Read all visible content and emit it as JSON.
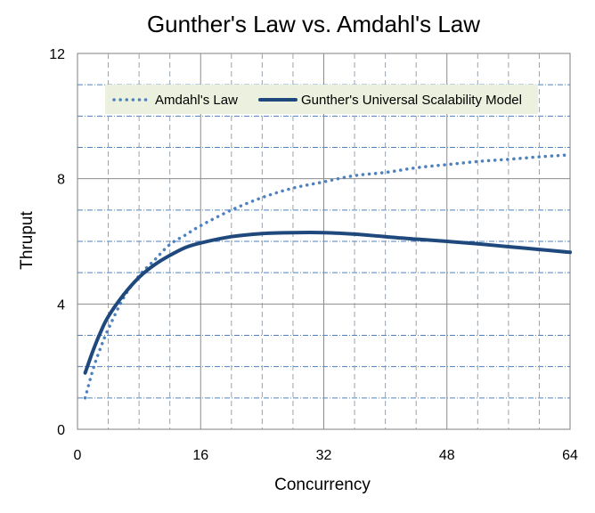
{
  "chart_data": {
    "type": "line",
    "title": "Gunther's Law vs. Amdahl's Law",
    "xlabel": "Concurrency",
    "ylabel": "Thruput",
    "xlim": [
      0,
      64
    ],
    "ylim": [
      0,
      12
    ],
    "x_ticks": [
      0,
      16,
      32,
      48,
      64
    ],
    "y_ticks": [
      0,
      4,
      8,
      12
    ],
    "x_tick_labels": [
      "0",
      "16",
      "32",
      "48",
      "64"
    ],
    "y_tick_labels": [
      "0",
      "4",
      "8",
      "12"
    ],
    "grid": true,
    "legend_position": "top-left",
    "x": [
      1,
      2,
      3,
      4,
      6,
      8,
      10,
      12,
      14,
      16,
      20,
      24,
      28,
      32,
      36,
      40,
      44,
      48,
      52,
      56,
      60,
      64
    ],
    "series": [
      {
        "name": "Amdahl's Law",
        "style": "dotted",
        "color": "#4f81bd",
        "values": [
          1.0,
          1.9,
          2.6,
          3.2,
          4.2,
          4.9,
          5.4,
          5.9,
          6.2,
          6.5,
          7.0,
          7.4,
          7.7,
          7.9,
          8.1,
          8.2,
          8.35,
          8.45,
          8.55,
          8.62,
          8.7,
          8.76
        ]
      },
      {
        "name": "Gunther's Universal Scalability Model",
        "style": "solid",
        "color": "#1f497d",
        "values": [
          1.8,
          2.5,
          3.1,
          3.6,
          4.3,
          4.85,
          5.25,
          5.55,
          5.8,
          5.95,
          6.15,
          6.25,
          6.28,
          6.28,
          6.23,
          6.15,
          6.07,
          6.0,
          5.92,
          5.83,
          5.74,
          5.65
        ]
      }
    ]
  }
}
